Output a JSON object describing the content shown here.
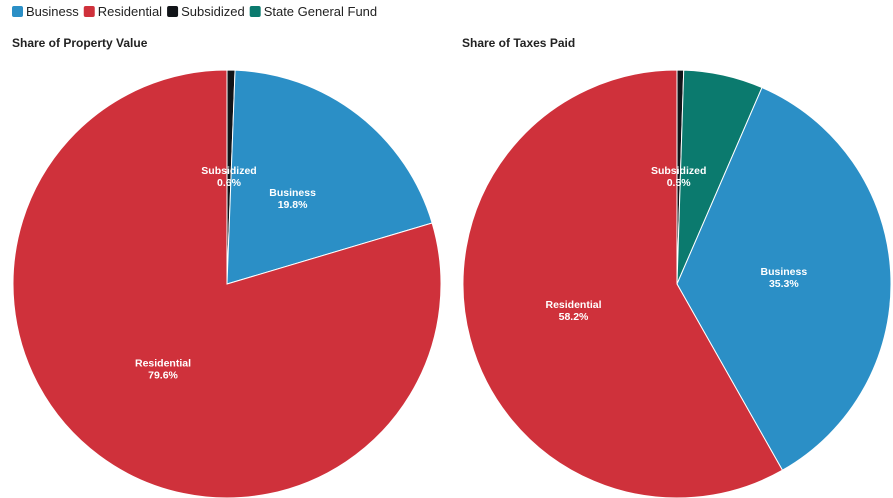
{
  "legend": {
    "labels": [
      "Business",
      "Residential",
      "Subsidized",
      "State General Fund"
    ],
    "colors": [
      "#2b8fc6",
      "#cf313b",
      "#111418",
      "#0b7a6e"
    ]
  },
  "chart_data": [
    {
      "type": "pie",
      "title": "Share of Property Value",
      "categories": [
        "Subsidized",
        "Business",
        "Residential"
      ],
      "values": [
        0.6,
        19.8,
        79.6
      ],
      "value_labels": [
        "0.6%",
        "19.8%",
        "79.6%"
      ],
      "colors": [
        "#111418",
        "#2b8fc6",
        "#cf313b"
      ]
    },
    {
      "type": "pie",
      "title": "Share of Taxes Paid",
      "categories": [
        "Subsidized",
        "State General Fund",
        "Business",
        "Residential"
      ],
      "values": [
        0.5,
        6.0,
        35.3,
        58.2
      ],
      "value_labels": [
        "0.5%",
        null,
        "35.3%",
        "58.2%"
      ],
      "colors": [
        "#111418",
        "#0b7a6e",
        "#2b8fc6",
        "#cf313b"
      ]
    }
  ]
}
